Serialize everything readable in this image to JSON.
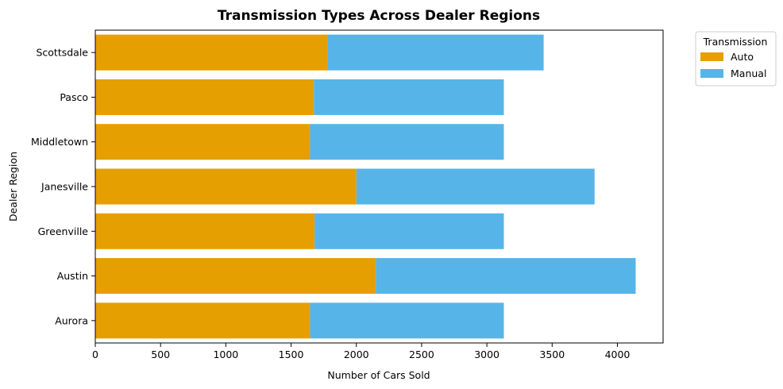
{
  "chart_data": {
    "type": "bar",
    "orientation": "horizontal",
    "stacked": true,
    "title": "Transmission Types Across Dealer Regions",
    "xlabel": "Number of Cars Sold",
    "ylabel": "Dealer Region",
    "categories": [
      "Aurora",
      "Austin",
      "Greenville",
      "Janesville",
      "Middletown",
      "Pasco",
      "Scottsdale"
    ],
    "series": [
      {
        "name": "Auto",
        "color": "#E69F00",
        "values": [
          1645,
          2150,
          1680,
          2000,
          1645,
          1675,
          1780
        ]
      },
      {
        "name": "Manual",
        "color": "#56B4E9",
        "values": [
          1485,
          1990,
          1450,
          1825,
          1485,
          1455,
          1655
        ]
      }
    ],
    "xlim": [
      0,
      4350
    ],
    "xticks": [
      0,
      500,
      1000,
      1500,
      2000,
      2500,
      3000,
      3500,
      4000
    ],
    "grid": false,
    "legend": {
      "title": "Transmission",
      "placement": "outside-top-right"
    }
  }
}
